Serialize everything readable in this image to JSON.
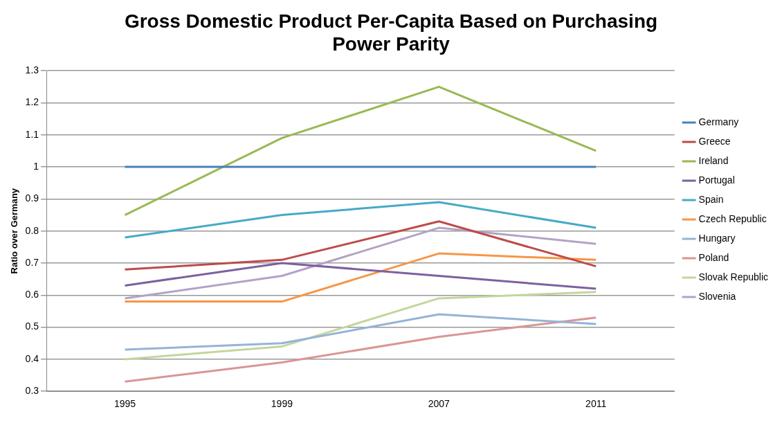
{
  "chart_data": {
    "type": "line",
    "title": "Gross Domestic Product Per-Capita Based on Purchasing Power Parity",
    "ylabel": "Ratio over Germany",
    "categories": [
      "1995",
      "1999",
      "2007",
      "2011"
    ],
    "series": [
      {
        "name": "Germany",
        "color": "#4a7ebb",
        "values": [
          1,
          1,
          1,
          1
        ]
      },
      {
        "name": "Greece",
        "color": "#be4b48",
        "values": [
          0.68,
          0.71,
          0.83,
          0.69
        ]
      },
      {
        "name": "Ireland",
        "color": "#98b954",
        "values": [
          0.85,
          1.09,
          1.25,
          1.05
        ]
      },
      {
        "name": "Portugal",
        "color": "#7d60a0",
        "values": [
          0.63,
          0.7,
          0.66,
          0.62
        ]
      },
      {
        "name": "Spain",
        "color": "#46aac5",
        "values": [
          0.78,
          0.85,
          0.89,
          0.81
        ]
      },
      {
        "name": "Czech Republic",
        "color": "#f79646",
        "values": [
          0.58,
          0.58,
          0.73,
          0.71
        ]
      },
      {
        "name": "Hungary",
        "color": "#95b3d7",
        "values": [
          0.43,
          0.45,
          0.54,
          0.51
        ]
      },
      {
        "name": "Poland",
        "color": "#d99694",
        "values": [
          0.33,
          0.39,
          0.47,
          0.53
        ]
      },
      {
        "name": "Slovak Republic",
        "color": "#c3d69b",
        "values": [
          0.4,
          0.44,
          0.59,
          0.61
        ]
      },
      {
        "name": "Slovenia",
        "color": "#b3a2c7",
        "values": [
          0.59,
          0.66,
          0.81,
          0.76
        ]
      }
    ],
    "ylim": [
      0.3,
      1.3
    ],
    "yticks": [
      0.3,
      0.4,
      0.5,
      0.6,
      0.7,
      0.8,
      0.9,
      1,
      1.1,
      1.2,
      1.3
    ],
    "grid": "y",
    "legend": "right",
    "marker": "none",
    "line_style": "solid"
  }
}
